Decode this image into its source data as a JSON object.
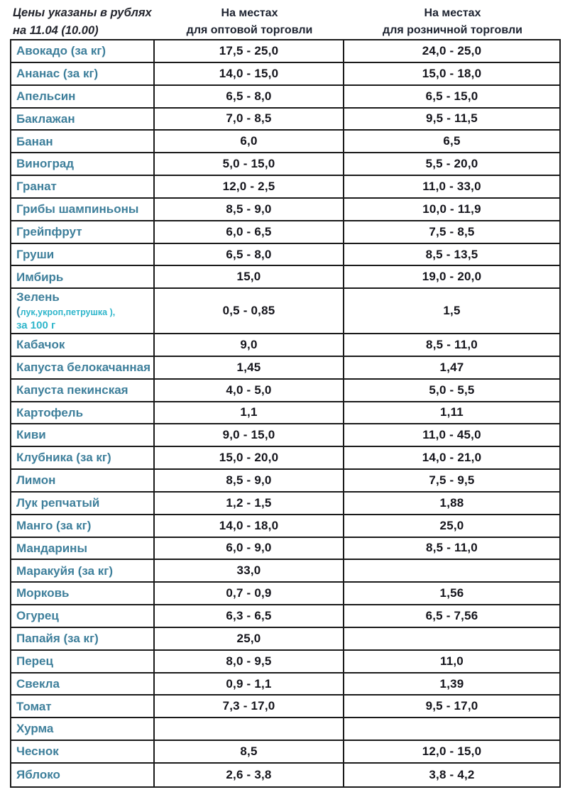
{
  "header": {
    "title_line1": "Цены указаны в рублях",
    "title_line2": "на 11.04 (10.00)",
    "wholesale_col_line1": "На местах",
    "wholesale_col_line2": "для оптовой торговли",
    "retail_col_line1": "На местах",
    "retail_col_line2": "для розничной торговли"
  },
  "colors": {
    "product_name": "#3e7f9b",
    "product_name_accent": "#2fb6cb",
    "price_text": "#15151c",
    "border": "#1a1a1a",
    "header_text": "#1d2330",
    "background": "#ffffff"
  },
  "table": {
    "rows": [
      {
        "name": "Авокадо (за кг)",
        "wholesale": "17,5 - 25,0",
        "retail": "24,0 - 25,0"
      },
      {
        "name": "Ананас (за кг)",
        "wholesale": "14,0 - 15,0",
        "retail": "15,0 - 18,0"
      },
      {
        "name": "Апельсин",
        "wholesale": "6,5 - 8,0",
        "retail": "6,5 - 15,0"
      },
      {
        "name": "Баклажан",
        "wholesale": "7,0 - 8,5",
        "retail": "9,5 - 11,5"
      },
      {
        "name": "Банан",
        "wholesale": "6,0",
        "retail": "6,5"
      },
      {
        "name": "Виноград",
        "wholesale": "5,0 - 15,0",
        "retail": "5,5 - 20,0"
      },
      {
        "name": "Гранат",
        "wholesale": "12,0 - 2,5",
        "retail": "11,0 - 33,0"
      },
      {
        "name": "Грибы шампиньоны",
        "wholesale": "8,5 - 9,0",
        "retail": "10,0 - 11,9"
      },
      {
        "name": "Грейпфрут",
        "wholesale": "6,0 - 6,5",
        "retail": "7,5 - 8,5"
      },
      {
        "name": "Груши",
        "wholesale": "6,5 - 8,0",
        "retail": "8,5 - 13,5"
      },
      {
        "name": "Имбирь",
        "wholesale": "15,0",
        "retail": "19,0 - 20,0"
      },
      {
        "name": "Зелень (",
        "name_small": "лук,укроп,петрушка ),",
        "name_line2": "за 100 г",
        "wholesale": "0,5 - 0,85",
        "retail": "1,5",
        "tall": true
      },
      {
        "name": "Кабачок",
        "wholesale": "9,0",
        "retail": "8,5 - 11,0"
      },
      {
        "name": "Капуста белокачанная",
        "wholesale": "1,45",
        "retail": "1,47"
      },
      {
        "name": "Капуста пекинская",
        "wholesale": "4,0 - 5,0",
        "retail": "5,0 - 5,5"
      },
      {
        "name": "Картофель",
        "wholesale": "1,1",
        "retail": "1,11"
      },
      {
        "name": "Киви",
        "wholesale": "9,0 - 15,0",
        "retail": "11,0 - 45,0"
      },
      {
        "name": "Клубника (за кг)",
        "wholesale": "15,0 - 20,0",
        "retail": "14,0 - 21,0"
      },
      {
        "name": "Лимон",
        "wholesale": "8,5 - 9,0",
        "retail": "7,5 - 9,5"
      },
      {
        "name": "Лук репчатый",
        "wholesale": "1,2 - 1,5",
        "retail": "1,88"
      },
      {
        "name": "Манго (за кг)",
        "wholesale": "14,0 - 18,0",
        "retail": "25,0"
      },
      {
        "name": "Мандарины",
        "wholesale": "6,0 - 9,0",
        "retail": "8,5 - 11,0"
      },
      {
        "name": "Маракуйя (за кг)",
        "wholesale": "33,0",
        "retail": ""
      },
      {
        "name": "Морковь",
        "wholesale": "0,7 - 0,9",
        "retail": "1,56"
      },
      {
        "name": "Огурец",
        "wholesale": "6,3 - 6,5",
        "retail": "6,5 - 7,56"
      },
      {
        "name": "Папайя (за кг)",
        "wholesale": "25,0",
        "retail": ""
      },
      {
        "name": "Перец",
        "wholesale": "8,0 - 9,5",
        "retail": "11,0"
      },
      {
        "name": "Свекла",
        "wholesale": "0,9 - 1,1",
        "retail": "1,39"
      },
      {
        "name": "Томат",
        "wholesale": "7,3 - 17,0",
        "retail": "9,5 - 17,0"
      },
      {
        "name": "Хурма",
        "wholesale": "",
        "retail": ""
      },
      {
        "name": "Чеснок",
        "wholesale": "8,5",
        "retail": "12,0 - 15,0"
      },
      {
        "name": "Яблоко",
        "wholesale": "2,6 - 3,8",
        "retail": "3,8 - 4,2"
      }
    ]
  }
}
